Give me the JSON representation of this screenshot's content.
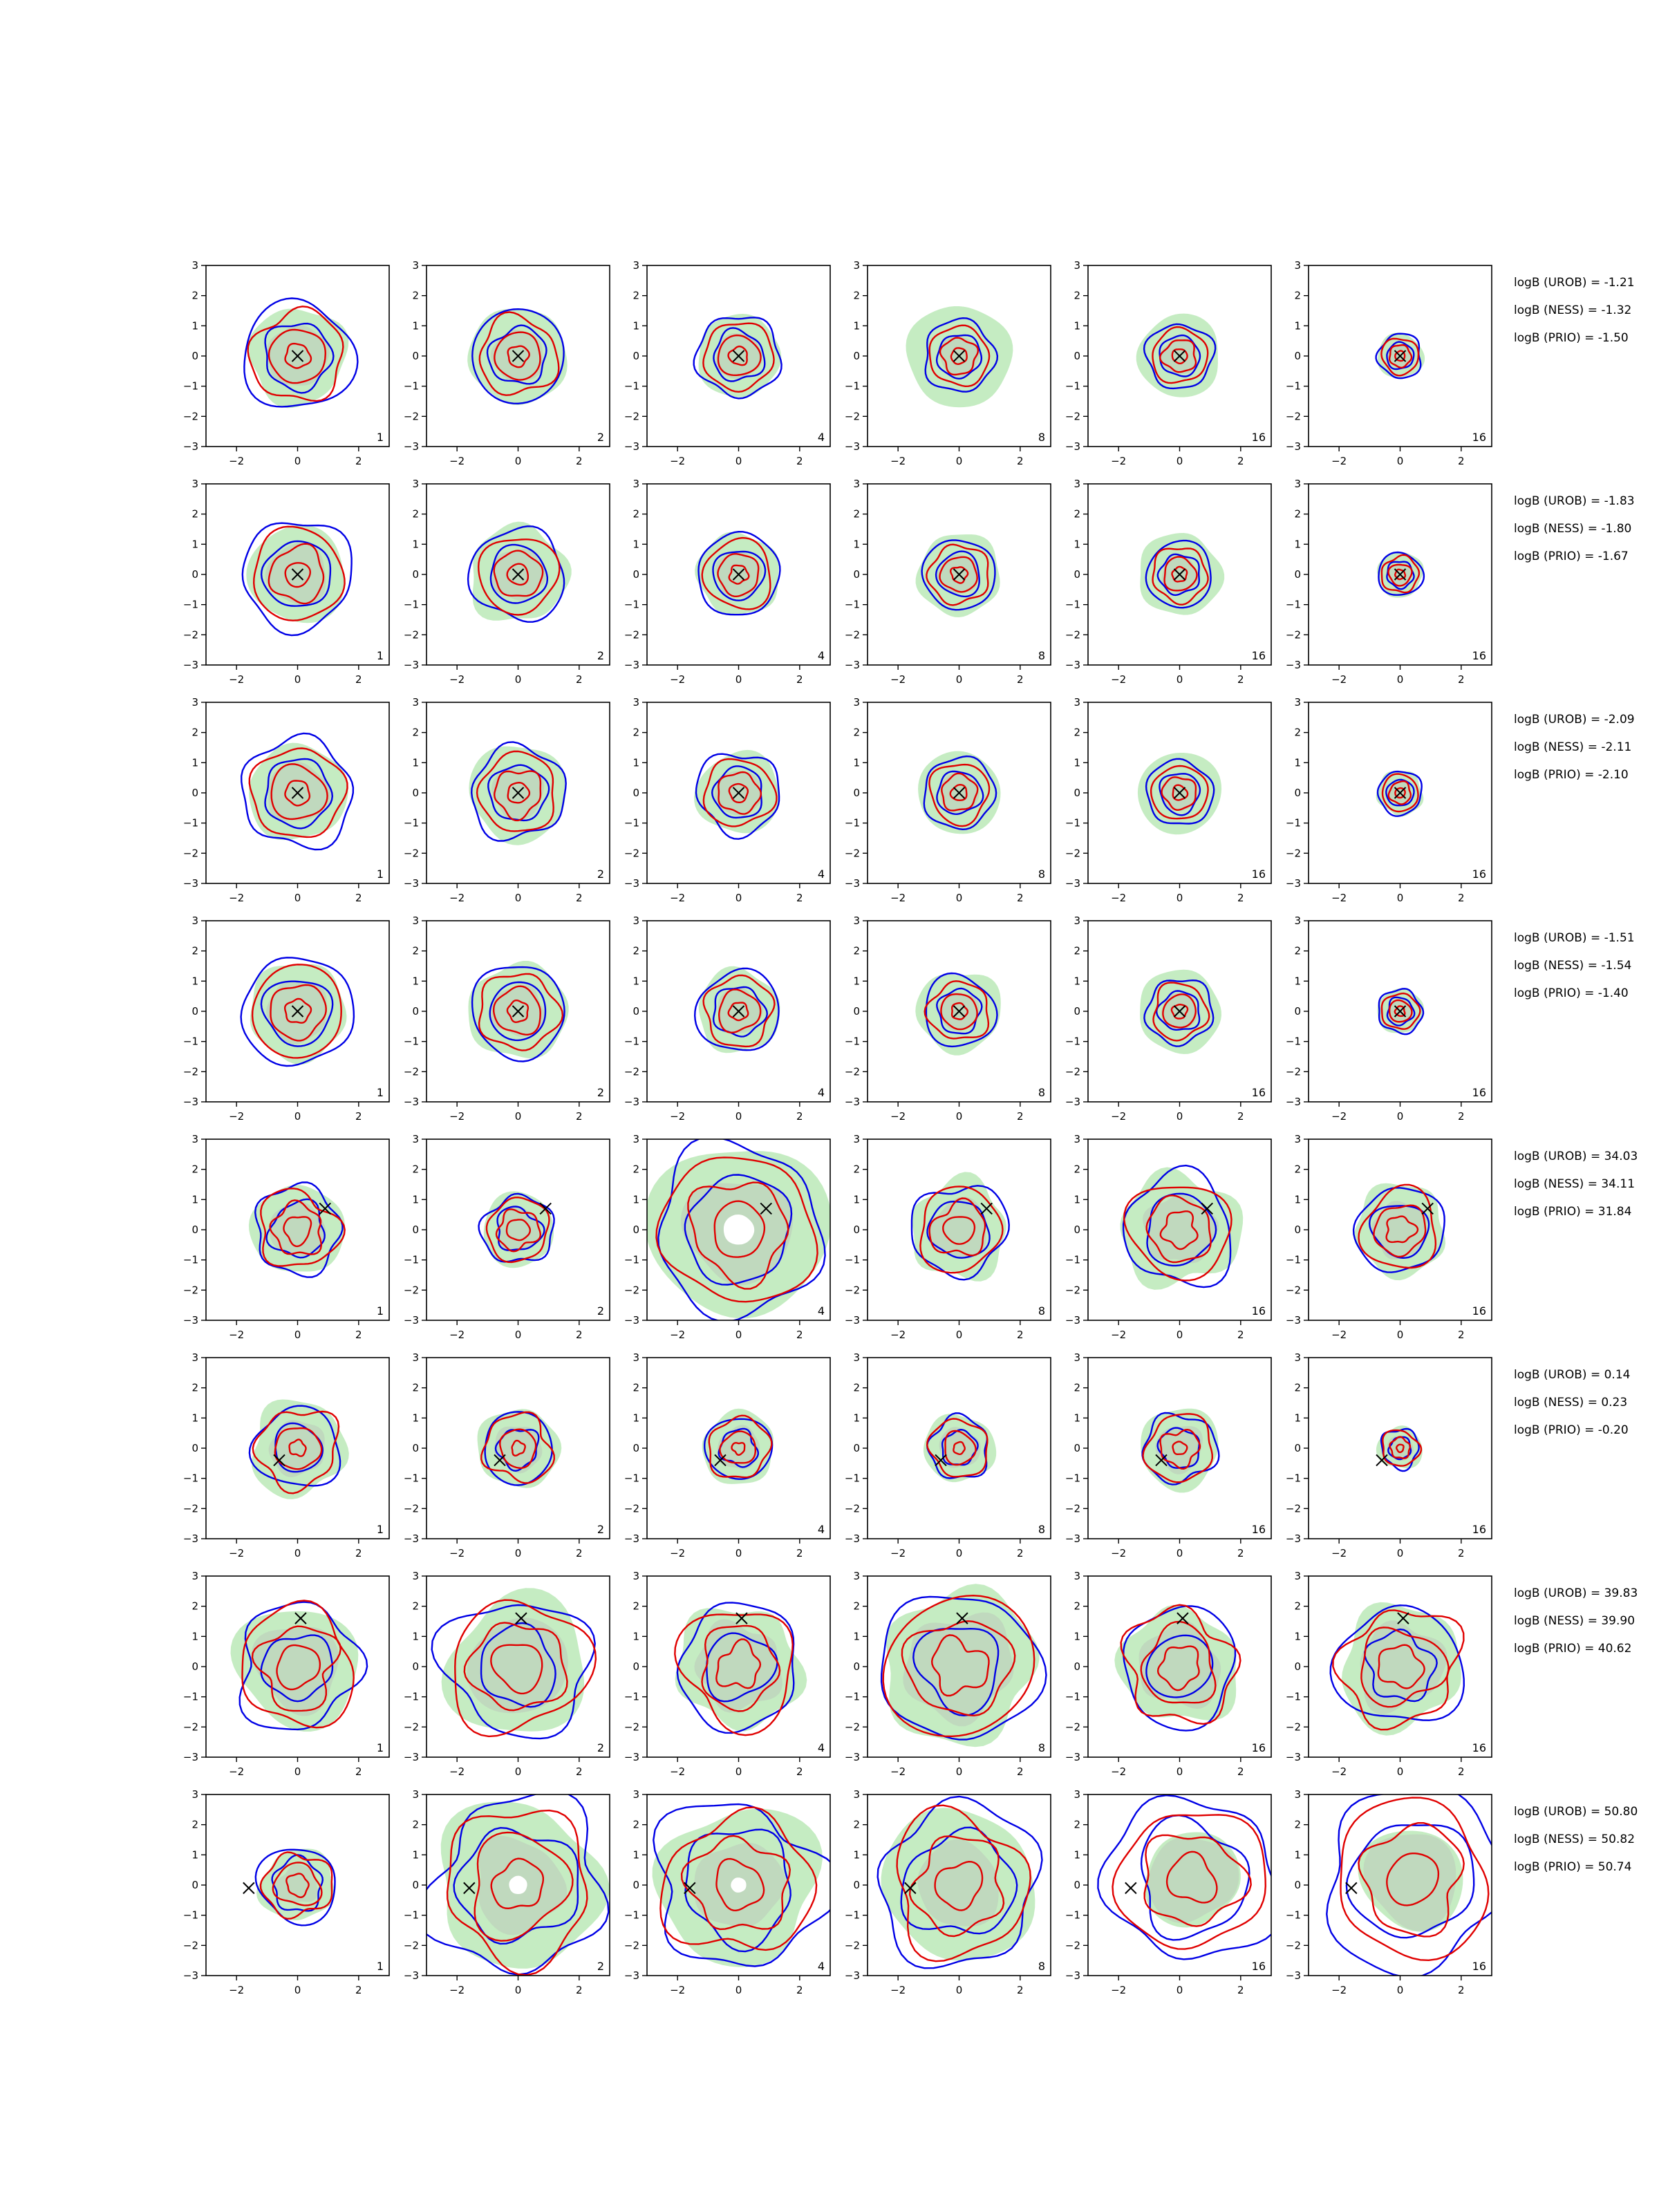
{
  "figure": {
    "background": "#ffffff"
  },
  "colors": {
    "fill_main": "#9fe09a",
    "fill_grey": "#b8b8b8",
    "contour_a": "#0000e6",
    "contour_b": "#e00000",
    "marker": "#000000",
    "axes": "#000000"
  },
  "axes_ticks": {
    "x": [
      "−2",
      "0",
      "2"
    ],
    "y": [
      "3",
      "2",
      "1",
      "0",
      "−1",
      "−2",
      "−3"
    ]
  },
  "column_labels": [
    "1",
    "2",
    "4",
    "8",
    "16",
    "16"
  ],
  "chart_data": {
    "type": "contour-grid",
    "rows": 8,
    "columns": 6,
    "xlim": [
      -3,
      3
    ],
    "ylim": [
      -3,
      3
    ],
    "column_labels": [
      "1",
      "2",
      "4",
      "8",
      "16",
      "16"
    ],
    "row_markers": [
      [
        0,
        0
      ],
      [
        0,
        0
      ],
      [
        0,
        0
      ],
      [
        0,
        0
      ],
      [
        0.9,
        0.7
      ],
      [
        -0.6,
        -0.4
      ],
      [
        0.1,
        1.6
      ],
      [
        -1.6,
        -0.1
      ]
    ],
    "bayes_factors": [
      [
        "logB (UROB) = -1.21",
        "logB (NESS) = -1.32",
        "logB (PRIO) = -1.50"
      ],
      [
        "logB (UROB) = -1.83",
        "logB (NESS) = -1.80",
        "logB (PRIO) = -1.67"
      ],
      [
        "logB (UROB) = -2.09",
        "logB (NESS) = -2.11",
        "logB (PRIO) = -2.10"
      ],
      [
        "logB (UROB) = -1.51",
        "logB (NESS) = -1.54",
        "logB (PRIO) = -1.40"
      ],
      [
        "logB (UROB) = 34.03",
        "logB (NESS) = 34.11",
        "logB (PRIO) = 31.84"
      ],
      [
        "logB (UROB) = 0.14",
        "logB (NESS) = 0.23",
        "logB (PRIO) = -0.20"
      ],
      [
        "logB (UROB) = 39.83",
        "logB (NESS) = 39.90",
        "logB (PRIO) = 40.62"
      ],
      [
        "logB (UROB) = 50.80",
        "logB (NESS) = 50.82",
        "logB (PRIO) = 50.74"
      ]
    ]
  }
}
